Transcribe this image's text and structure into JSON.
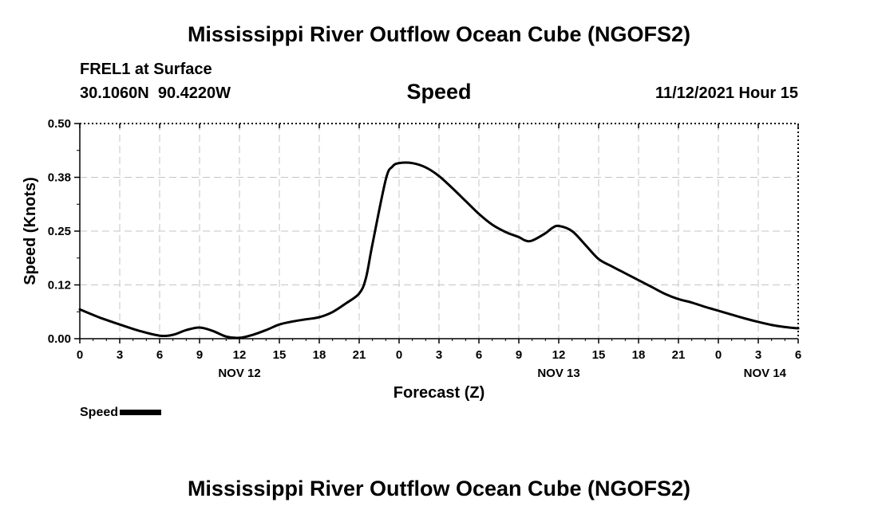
{
  "header": {
    "title": "Mississippi River Outflow Ocean Cube (NGOFS2)",
    "station": "FREL1 at Surface",
    "coords": "30.1060N  90.4220W",
    "timestamp": "11/12/2021 Hour 15"
  },
  "footer": {
    "title": "Mississippi River Outflow Ocean Cube (NGOFS2)"
  },
  "chart_data": {
    "type": "line",
    "title": "Speed",
    "xlabel": "Forecast (Z)",
    "ylabel": "Speed (Knots)",
    "ylim": [
      0,
      0.5
    ],
    "yticks": [
      "0.00",
      "0.12",
      "0.25",
      "0.38",
      "0.50"
    ],
    "xlim": [
      0,
      54
    ],
    "xticks": [
      "0",
      "3",
      "6",
      "9",
      "12",
      "15",
      "18",
      "21",
      "0",
      "3",
      "6",
      "9",
      "12",
      "15",
      "18",
      "21",
      "0",
      "3",
      "6"
    ],
    "day_labels": [
      "NOV 12",
      "NOV 13",
      "NOV 14"
    ],
    "grid": true,
    "legend": {
      "label": "Speed",
      "position": "bottom-left"
    },
    "series": [
      {
        "name": "Speed",
        "color": "#000000",
        "x": [
          0,
          1.5,
          3,
          4.5,
          6,
          7,
          8,
          9,
          10,
          11,
          12,
          13,
          14,
          15,
          16,
          17,
          18,
          19,
          20,
          21,
          21.5,
          22,
          23,
          23.5,
          24,
          25,
          26,
          27,
          28,
          29,
          30,
          31,
          32,
          33,
          33.5,
          34,
          35,
          35.5,
          36,
          37,
          38,
          39,
          40,
          41,
          42,
          43,
          44,
          45,
          46,
          47,
          48,
          49,
          50,
          51,
          52,
          53,
          54
        ],
        "values": [
          0.068,
          0.049,
          0.033,
          0.018,
          0.007,
          0.009,
          0.02,
          0.026,
          0.018,
          0.005,
          0.002,
          0.009,
          0.02,
          0.033,
          0.04,
          0.045,
          0.05,
          0.062,
          0.082,
          0.105,
          0.14,
          0.22,
          0.37,
          0.4,
          0.408,
          0.408,
          0.398,
          0.378,
          0.35,
          0.32,
          0.29,
          0.265,
          0.248,
          0.236,
          0.228,
          0.228,
          0.245,
          0.257,
          0.262,
          0.25,
          0.218,
          0.185,
          0.168,
          0.152,
          0.136,
          0.12,
          0.104,
          0.092,
          0.084,
          0.074,
          0.065,
          0.056,
          0.047,
          0.039,
          0.032,
          0.027,
          0.024
        ]
      }
    ]
  }
}
